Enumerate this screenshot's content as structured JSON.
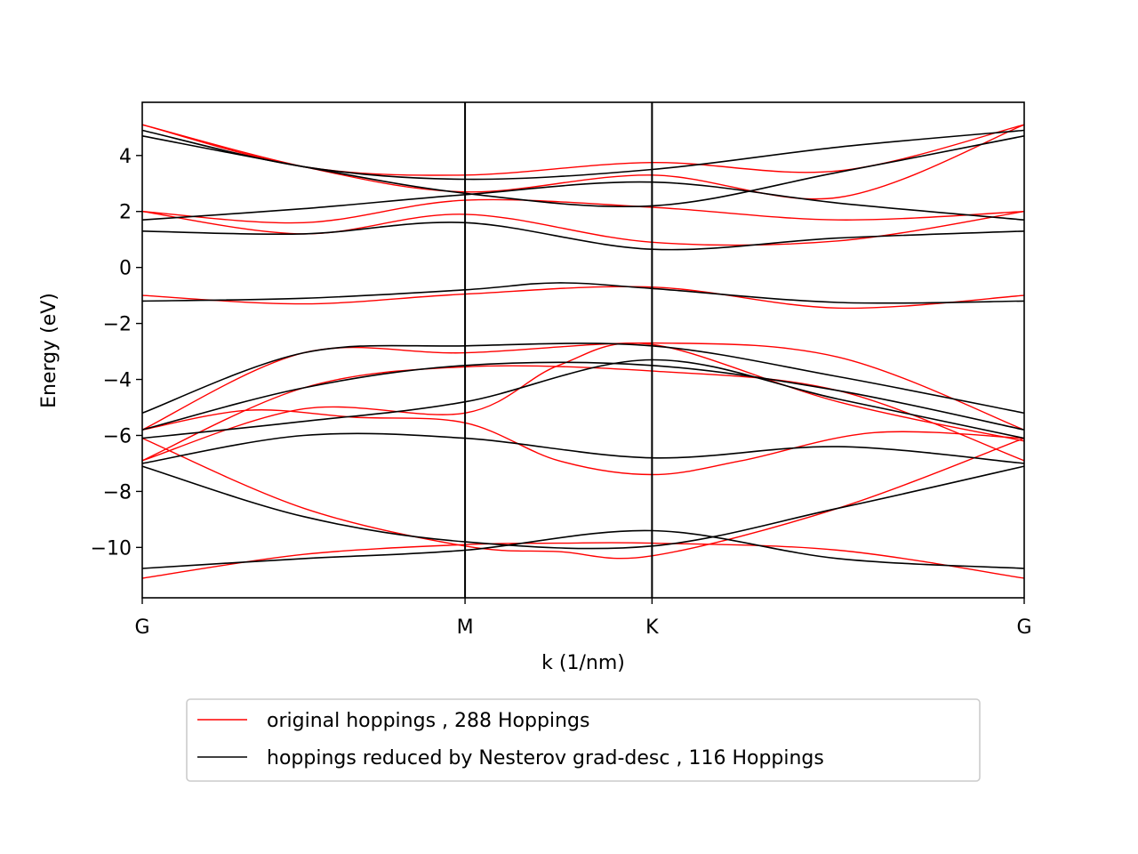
{
  "chart_data": {
    "type": "line",
    "title": "",
    "xlabel": "k (1/nm)",
    "ylabel": "Energy (eV)",
    "xlim": [
      0,
      1
    ],
    "ylim": [
      -11.8,
      5.9
    ],
    "grid": false,
    "legend_placement": "below",
    "x_ticks": [
      {
        "pos": 0.0,
        "label": "G"
      },
      {
        "pos": 0.366,
        "label": "M"
      },
      {
        "pos": 0.578,
        "label": "K"
      },
      {
        "pos": 1.0,
        "label": "G"
      }
    ],
    "y_ticks": [
      4,
      2,
      0,
      -2,
      -4,
      -6,
      -8,
      -10
    ],
    "y_tick_labels": [
      "4",
      "2",
      "0",
      "−2",
      "−4",
      "−6",
      "−8",
      "−10"
    ],
    "vlines": [
      0.366,
      0.578
    ],
    "series": [
      {
        "name": "original hoppings , 288 Hoppings",
        "color": "#ff0000",
        "bands": [
          [
            [
              0,
              -11.1
            ],
            [
              0.183,
              -10.25
            ],
            [
              0.366,
              -9.9
            ],
            [
              0.472,
              -9.85
            ],
            [
              0.578,
              -9.85
            ],
            [
              0.789,
              -10.1
            ],
            [
              1,
              -11.1
            ]
          ],
          [
            [
              0,
              -6.1
            ],
            [
              0.183,
              -8.6
            ],
            [
              0.366,
              -9.95
            ],
            [
              0.472,
              -10.15
            ],
            [
              0.578,
              -10.3
            ],
            [
              0.789,
              -8.6
            ],
            [
              1,
              -6.1
            ]
          ],
          [
            [
              0,
              -5.8
            ],
            [
              0.12,
              -5.1
            ],
            [
              0.24,
              -5.35
            ],
            [
              0.366,
              -5.55
            ],
            [
              0.472,
              -6.9
            ],
            [
              0.578,
              -7.4
            ],
            [
              0.68,
              -6.9
            ],
            [
              0.83,
              -5.9
            ],
            [
              1,
              -6.1
            ]
          ],
          [
            [
              0,
              -6.9
            ],
            [
              0.183,
              -5.05
            ],
            [
              0.366,
              -5.2
            ],
            [
              0.472,
              -3.5
            ],
            [
              0.578,
              -2.75
            ],
            [
              0.789,
              -4.8
            ],
            [
              1,
              -6.2
            ]
          ],
          [
            [
              0,
              -6.9
            ],
            [
              0.183,
              -4.3
            ],
            [
              0.366,
              -3.55
            ],
            [
              0.578,
              -3.7
            ],
            [
              0.789,
              -4.4
            ],
            [
              1,
              -6.9
            ]
          ],
          [
            [
              0,
              -5.8
            ],
            [
              0.183,
              -3.05
            ],
            [
              0.366,
              -3.05
            ],
            [
              0.578,
              -2.7
            ],
            [
              0.789,
              -3.2
            ],
            [
              1,
              -5.8
            ]
          ],
          [
            [
              0,
              -1.0
            ],
            [
              0.183,
              -1.3
            ],
            [
              0.366,
              -0.95
            ],
            [
              0.578,
              -0.7
            ],
            [
              0.789,
              -1.45
            ],
            [
              1,
              -1.0
            ]
          ],
          [
            [
              0,
              2.0
            ],
            [
              0.183,
              1.2
            ],
            [
              0.366,
              1.9
            ],
            [
              0.578,
              0.9
            ],
            [
              0.789,
              0.95
            ],
            [
              1,
              2.0
            ]
          ],
          [
            [
              0,
              2.0
            ],
            [
              0.183,
              1.6
            ],
            [
              0.366,
              2.4
            ],
            [
              0.578,
              2.15
            ],
            [
              0.789,
              1.7
            ],
            [
              1,
              2.0
            ]
          ],
          [
            [
              0,
              5.1
            ],
            [
              0.183,
              3.6
            ],
            [
              0.366,
              2.7
            ],
            [
              0.578,
              3.3
            ],
            [
              0.789,
              2.5
            ],
            [
              1,
              5.1
            ]
          ],
          [
            [
              0,
              5.1
            ],
            [
              0.183,
              3.6
            ],
            [
              0.366,
              3.3
            ],
            [
              0.578,
              3.75
            ],
            [
              0.789,
              3.45
            ],
            [
              1,
              5.1
            ]
          ]
        ]
      },
      {
        "name": "hoppings reduced by Nesterov grad-desc , 116 Hoppings",
        "color": "#000000",
        "bands": [
          [
            [
              0,
              -10.75
            ],
            [
              0.183,
              -10.4
            ],
            [
              0.366,
              -10.1
            ],
            [
              0.578,
              -9.4
            ],
            [
              0.789,
              -10.4
            ],
            [
              1,
              -10.75
            ]
          ],
          [
            [
              0,
              -7.1
            ],
            [
              0.183,
              -8.9
            ],
            [
              0.366,
              -9.8
            ],
            [
              0.578,
              -9.95
            ],
            [
              0.789,
              -8.6
            ],
            [
              1,
              -7.1
            ]
          ],
          [
            [
              0,
              -7.0
            ],
            [
              0.183,
              -6.0
            ],
            [
              0.366,
              -6.1
            ],
            [
              0.578,
              -6.8
            ],
            [
              0.789,
              -6.4
            ],
            [
              1,
              -7.0
            ]
          ],
          [
            [
              0,
              -6.1
            ],
            [
              0.183,
              -5.5
            ],
            [
              0.366,
              -4.8
            ],
            [
              0.578,
              -3.3
            ],
            [
              0.789,
              -4.7
            ],
            [
              1,
              -6.1
            ]
          ],
          [
            [
              0,
              -5.8
            ],
            [
              0.183,
              -4.3
            ],
            [
              0.366,
              -3.5
            ],
            [
              0.578,
              -3.5
            ],
            [
              0.789,
              -4.4
            ],
            [
              1,
              -5.8
            ]
          ],
          [
            [
              0,
              -5.2
            ],
            [
              0.183,
              -3.05
            ],
            [
              0.366,
              -2.8
            ],
            [
              0.578,
              -2.8
            ],
            [
              0.789,
              -3.9
            ],
            [
              1,
              -5.2
            ]
          ],
          [
            [
              0,
              -1.2
            ],
            [
              0.183,
              -1.1
            ],
            [
              0.366,
              -0.8
            ],
            [
              0.47,
              -0.55
            ],
            [
              0.578,
              -0.75
            ],
            [
              0.789,
              -1.25
            ],
            [
              1,
              -1.2
            ]
          ],
          [
            [
              0,
              1.3
            ],
            [
              0.183,
              1.2
            ],
            [
              0.366,
              1.6
            ],
            [
              0.578,
              0.65
            ],
            [
              0.789,
              1.05
            ],
            [
              1,
              1.3
            ]
          ],
          [
            [
              0,
              1.7
            ],
            [
              0.183,
              2.1
            ],
            [
              0.366,
              2.6
            ],
            [
              0.578,
              3.05
            ],
            [
              0.789,
              2.3
            ],
            [
              1,
              1.7
            ]
          ],
          [
            [
              0,
              4.7
            ],
            [
              0.183,
              3.6
            ],
            [
              0.366,
              2.65
            ],
            [
              0.578,
              2.2
            ],
            [
              0.789,
              3.4
            ],
            [
              1,
              4.7
            ]
          ],
          [
            [
              0,
              4.9
            ],
            [
              0.183,
              3.6
            ],
            [
              0.366,
              3.15
            ],
            [
              0.578,
              3.5
            ],
            [
              0.789,
              4.3
            ],
            [
              1,
              4.9
            ]
          ]
        ]
      }
    ]
  },
  "legend": {
    "items": [
      {
        "label": "original hoppings , 288 Hoppings",
        "color": "#ff0000"
      },
      {
        "label": "hoppings reduced by Nesterov grad-desc , 116 Hoppings",
        "color": "#000000"
      }
    ]
  }
}
